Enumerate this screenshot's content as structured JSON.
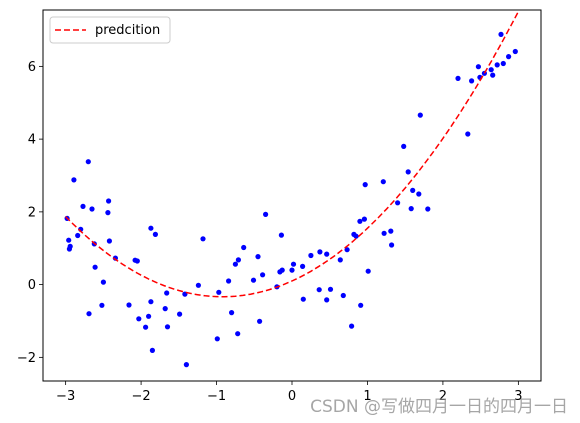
{
  "chart_data": {
    "type": "scatter",
    "legend": {
      "placement": "upper-left",
      "entries": [
        "predcition"
      ]
    },
    "xlim": [
      -3.3,
      3.3
    ],
    "ylim": [
      -2.65,
      7.55
    ],
    "xticks": [
      -3,
      -2,
      -1,
      0,
      1,
      2,
      3
    ],
    "yticks": [
      -2,
      0,
      2,
      4,
      6
    ],
    "xtick_labels": [
      "−3",
      "−2",
      "−1",
      "0",
      "1",
      "2",
      "3"
    ],
    "ytick_labels": [
      "−2",
      "0",
      "2",
      "4",
      "6"
    ],
    "grid": false,
    "series": [
      {
        "kind": "points",
        "color": "#0000ff",
        "points": [
          [
            -2.98,
            1.82
          ],
          [
            -2.96,
            1.22
          ],
          [
            -2.95,
            0.98
          ],
          [
            -2.94,
            1.05
          ],
          [
            -2.89,
            2.88
          ],
          [
            -2.84,
            1.35
          ],
          [
            -2.8,
            1.52
          ],
          [
            -2.77,
            2.15
          ],
          [
            -2.7,
            3.38
          ],
          [
            -2.69,
            -0.8
          ],
          [
            -2.65,
            2.08
          ],
          [
            -2.62,
            1.12
          ],
          [
            -2.61,
            0.48
          ],
          [
            -2.52,
            -0.57
          ],
          [
            -2.5,
            0.07
          ],
          [
            -2.43,
            2.3
          ],
          [
            -2.44,
            1.98
          ],
          [
            -2.42,
            1.2
          ],
          [
            -2.34,
            0.73
          ],
          [
            -2.16,
            -0.56
          ],
          [
            -2.08,
            0.67
          ],
          [
            -2.05,
            0.65
          ],
          [
            -2.03,
            -0.94
          ],
          [
            -1.94,
            -1.17
          ],
          [
            -1.9,
            -0.87
          ],
          [
            -1.87,
            -0.47
          ],
          [
            -1.87,
            1.55
          ],
          [
            -1.85,
            -1.81
          ],
          [
            -1.81,
            1.38
          ],
          [
            -1.68,
            -0.66
          ],
          [
            -1.65,
            -1.16
          ],
          [
            -1.66,
            -0.23
          ],
          [
            -1.49,
            -0.81
          ],
          [
            -1.42,
            -0.26
          ],
          [
            -1.4,
            -2.2
          ],
          [
            -1.24,
            -0.02
          ],
          [
            -1.18,
            1.26
          ],
          [
            -0.99,
            -1.49
          ],
          [
            -0.97,
            -0.21
          ],
          [
            -0.84,
            0.1
          ],
          [
            -0.8,
            -0.77
          ],
          [
            -0.75,
            0.56
          ],
          [
            -0.72,
            -1.35
          ],
          [
            -0.71,
            0.68
          ],
          [
            -0.64,
            1.02
          ],
          [
            -0.51,
            0.12
          ],
          [
            -0.45,
            0.77
          ],
          [
            -0.43,
            -1.01
          ],
          [
            -0.39,
            0.27
          ],
          [
            -0.35,
            1.93
          ],
          [
            -0.2,
            -0.06
          ],
          [
            -0.16,
            0.35
          ],
          [
            -0.14,
            1.36
          ],
          [
            -0.13,
            0.4
          ],
          [
            0.0,
            0.4
          ],
          [
            0.02,
            0.56
          ],
          [
            0.14,
            0.5
          ],
          [
            0.15,
            -0.4
          ],
          [
            0.25,
            0.8
          ],
          [
            0.36,
            -0.14
          ],
          [
            0.37,
            0.9
          ],
          [
            0.46,
            0.84
          ],
          [
            0.46,
            -0.42
          ],
          [
            0.51,
            -0.13
          ],
          [
            0.64,
            0.68
          ],
          [
            0.68,
            -0.3
          ],
          [
            0.73,
            0.96
          ],
          [
            0.79,
            -1.14
          ],
          [
            0.82,
            1.38
          ],
          [
            0.85,
            1.33
          ],
          [
            0.9,
            1.74
          ],
          [
            0.91,
            -0.57
          ],
          [
            0.96,
            1.8
          ],
          [
            0.97,
            2.75
          ],
          [
            1.01,
            0.37
          ],
          [
            1.21,
            2.83
          ],
          [
            1.22,
            1.41
          ],
          [
            1.31,
            1.47
          ],
          [
            1.32,
            1.09
          ],
          [
            1.4,
            2.25
          ],
          [
            1.48,
            3.8
          ],
          [
            1.54,
            3.1
          ],
          [
            1.58,
            2.09
          ],
          [
            1.6,
            2.59
          ],
          [
            1.68,
            2.49
          ],
          [
            1.7,
            4.66
          ],
          [
            1.8,
            2.08
          ],
          [
            2.2,
            5.67
          ],
          [
            2.33,
            4.14
          ],
          [
            2.38,
            5.6
          ],
          [
            2.47,
            5.99
          ],
          [
            2.49,
            5.7
          ],
          [
            2.55,
            5.81
          ],
          [
            2.64,
            5.91
          ],
          [
            2.66,
            5.76
          ],
          [
            2.72,
            6.04
          ],
          [
            2.77,
            6.88
          ],
          [
            2.8,
            6.08
          ],
          [
            2.87,
            6.27
          ],
          [
            2.96,
            6.41
          ]
        ]
      },
      {
        "kind": "line",
        "name": "predcition",
        "color": "#ff0000",
        "style": "dashed",
        "coefficients": {
          "a": 0.51,
          "b": 0.94,
          "c": 0.1
        }
      }
    ]
  },
  "watermark": "CSDN @写做四月一日的四月一日"
}
